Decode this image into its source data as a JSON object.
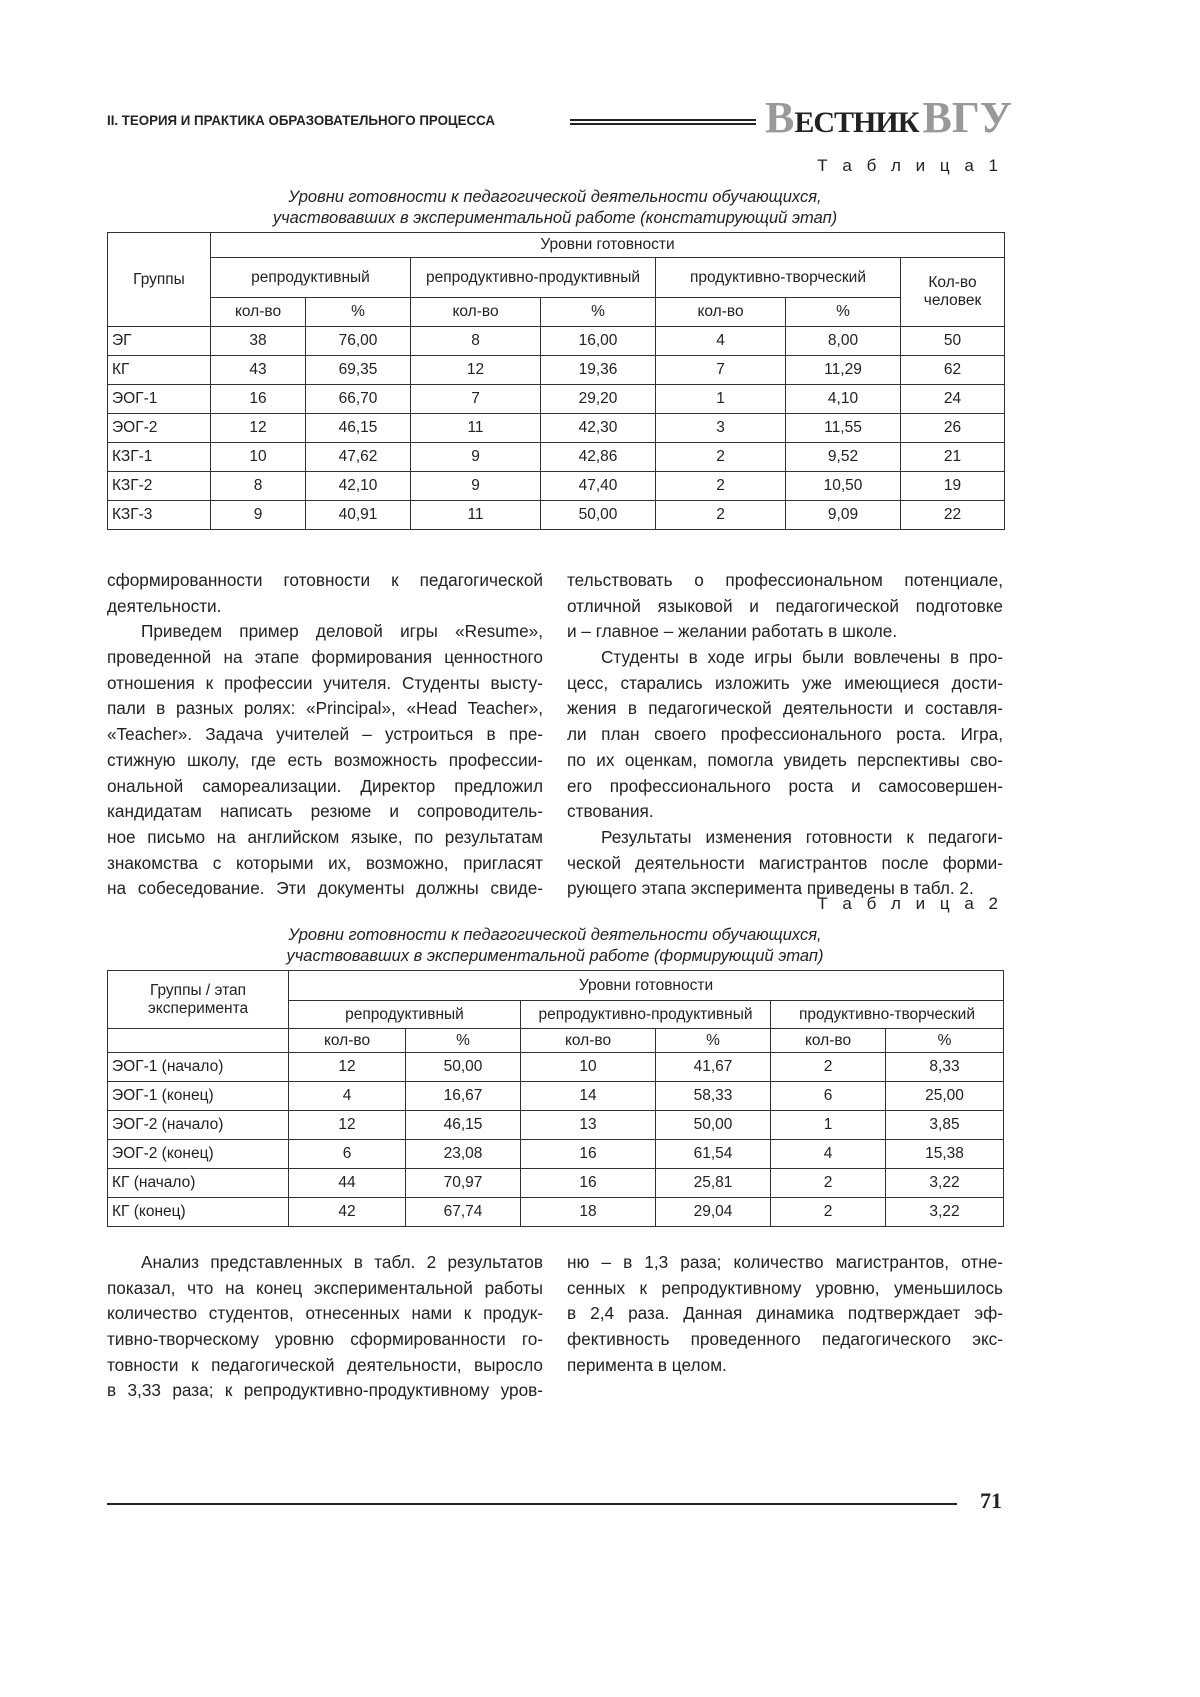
{
  "header": {
    "section": "II. ТЕОРИЯ И ПРАКТИКА ОБРАЗОВАТЕЛЬНОГО ПРОЦЕССА",
    "logo": {
      "first_big": "В",
      "small": "ЕСТНИК",
      "second": "ВГУ"
    }
  },
  "table1": {
    "label": "Т а б л и ц а  1",
    "caption": [
      "Уровни готовности к педагогической деятельности обучающихся,",
      "участвовавших в экспериментальной работе (констатирующий этап)"
    ],
    "h_groups": "Группы",
    "h_levels": "Уровни готовности",
    "levels": [
      "репродуктивный",
      "репродуктивно-продуктивный",
      "продуктивно-творческий"
    ],
    "h_count": "Кол-во человек",
    "sub": [
      "кол-во",
      "%"
    ],
    "rows": [
      [
        "ЭГ",
        "38",
        "76,00",
        "8",
        "16,00",
        "4",
        "8,00",
        "50"
      ],
      [
        "КГ",
        "43",
        "69,35",
        "12",
        "19,36",
        "7",
        "11,29",
        "62"
      ],
      [
        "ЭОГ-1",
        "16",
        "66,70",
        "7",
        "29,20",
        "1",
        "4,10",
        "24"
      ],
      [
        "ЭОГ-2",
        "12",
        "46,15",
        "11",
        "42,30",
        "3",
        "11,55",
        "26"
      ],
      [
        "КЗГ-1",
        "10",
        "47,62",
        "9",
        "42,86",
        "2",
        "9,52",
        "21"
      ],
      [
        "КЗГ-2",
        "8",
        "42,10",
        "9",
        "47,40",
        "2",
        "10,50",
        "19"
      ],
      [
        "КЗГ-3",
        "9",
        "40,91",
        "11",
        "50,00",
        "2",
        "9,09",
        "22"
      ]
    ]
  },
  "text1": {
    "left": [
      {
        "t": "сформированности готовности к педагогической"
      },
      {
        "t": "деятельности.",
        "last": true
      },
      {
        "t": "Приведем пример деловой игры «Resume»,",
        "ind": true
      },
      {
        "t": "проведенной на этапе формирования ценностного"
      },
      {
        "t": "отношения к профессии учителя. Студенты высту-"
      },
      {
        "t": "пали в разных ролях: «Principal», «Head Teacher»,"
      },
      {
        "t": "«Teacher». Задача учителей – устроиться в пре-"
      },
      {
        "t": "стижную школу, где есть возможность профессии-"
      },
      {
        "t": "ональной самореализации. Директор предложил"
      },
      {
        "t": "кандидатам написать резюме и сопроводитель-"
      },
      {
        "t": "ное письмо на английском языке, по результатам"
      },
      {
        "t": "знакомства с которыми их, возможно, пригласят"
      },
      {
        "t": "на собеседование. Эти документы должны свиде-"
      }
    ],
    "right": [
      {
        "t": "тельствовать о профессиональном потенциале,"
      },
      {
        "t": "отличной языковой и педагогической подготовке"
      },
      {
        "t": "и – главное – желании работать в школе.",
        "last": true
      },
      {
        "t": "Студенты в ходе игры были вовлечены в про-",
        "ind": true
      },
      {
        "t": "цесс, старались изложить уже имеющиеся дости-"
      },
      {
        "t": "жения в педагогической деятельности и составля-"
      },
      {
        "t": "ли план своего профессионального роста. Игра,"
      },
      {
        "t": "по их оценкам, помогла увидеть перспективы сво-"
      },
      {
        "t": "его профессионального роста и самосовершен-"
      },
      {
        "t": "ствования.",
        "last": true
      },
      {
        "t": "Результаты изменения готовности к педагоги-",
        "ind": true
      },
      {
        "t": "ческой деятельности магистрантов после форми-"
      },
      {
        "t": "рующего этапа эксперимента приведены в табл. 2.",
        "last": true
      }
    ]
  },
  "table2": {
    "label": "Т а б л и ц а  2",
    "caption": [
      "Уровни готовности к педагогической деятельности обучающихся,",
      "участвовавших в экспериментальной работе (формирующий этап)"
    ],
    "h_groups": "Группы / этап эксперимента",
    "h_levels": "Уровни готовности",
    "levels": [
      "репродуктивный",
      "репродуктивно-продуктивный",
      "продуктивно-творческий"
    ],
    "sub": [
      "кол-во",
      "%"
    ],
    "rows": [
      [
        "ЭОГ-1 (начало)",
        "12",
        "50,00",
        "10",
        "41,67",
        "2",
        "8,33"
      ],
      [
        "ЭОГ-1 (конец)",
        "4",
        "16,67",
        "14",
        "58,33",
        "6",
        "25,00"
      ],
      [
        "ЭОГ-2 (начало)",
        "12",
        "46,15",
        "13",
        "50,00",
        "1",
        "3,85"
      ],
      [
        "ЭОГ-2 (конец)",
        "6",
        "23,08",
        "16",
        "61,54",
        "4",
        "15,38"
      ],
      [
        "КГ (начало)",
        "44",
        "70,97",
        "16",
        "25,81",
        "2",
        "3,22"
      ],
      [
        "КГ (конец)",
        "42",
        "67,74",
        "18",
        "29,04",
        "2",
        "3,22"
      ]
    ]
  },
  "text2": {
    "left": [
      {
        "t": "Анализ представленных в табл. 2 результатов",
        "ind": true
      },
      {
        "t": "показал, что на конец экспериментальной работы"
      },
      {
        "t": "количество студентов, отнесенных нами к продук-"
      },
      {
        "t": "тивно-творческому уровню сформированности го-"
      },
      {
        "t": "товности к педагогической деятельности, выросло"
      },
      {
        "t": "в 3,33 раза; к репродуктивно-продуктивному уров-"
      }
    ],
    "right": [
      {
        "t": "ню – в 1,3 раза; количество магистрантов, отне-"
      },
      {
        "t": "сенных к репродуктивному уровню, уменьшилось"
      },
      {
        "t": "в 2,4 раза. Данная динамика подтверждает эф-"
      },
      {
        "t": "фективность проведенного педагогического экс-"
      },
      {
        "t": "перимента в целом.",
        "last": true
      }
    ]
  },
  "footer": {
    "page_number": "71"
  }
}
